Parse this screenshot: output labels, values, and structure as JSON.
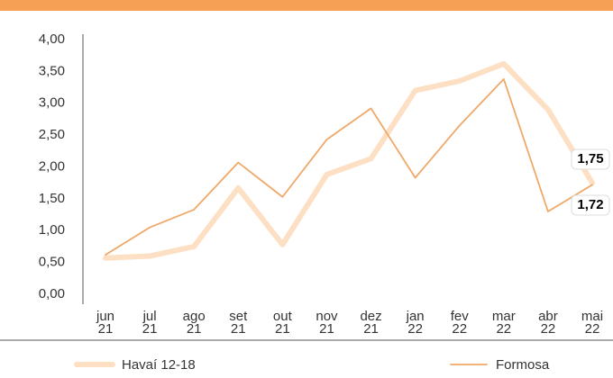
{
  "chart_data": {
    "type": "line",
    "categories": [
      "jun 21",
      "jul 21",
      "ago 21",
      "set 21",
      "out 21",
      "nov 21",
      "dez 21",
      "jan 22",
      "fev 22",
      "mar 22",
      "abr 22",
      "mai 22"
    ],
    "series": [
      {
        "name": "Havaí 12-18",
        "color": "#fde0c4",
        "values": [
          0.57,
          0.6,
          0.75,
          1.67,
          0.78,
          1.88,
          2.13,
          3.2,
          3.35,
          3.62,
          2.9,
          1.75
        ],
        "value_labels": [
          null,
          null,
          null,
          null,
          null,
          null,
          null,
          null,
          null,
          null,
          null,
          "1,75"
        ]
      },
      {
        "name": "Formosa",
        "color": "#f0a868",
        "values": [
          0.62,
          1.05,
          1.33,
          2.07,
          1.53,
          2.43,
          2.92,
          1.83,
          2.65,
          3.38,
          1.3,
          1.72
        ],
        "value_labels": [
          null,
          null,
          null,
          null,
          null,
          null,
          null,
          null,
          null,
          null,
          null,
          "1,72"
        ]
      }
    ],
    "ylim": [
      0,
      4
    ],
    "yticks": [
      {
        "value": 0,
        "label": "0,00"
      },
      {
        "value": 0.5,
        "label": "0,50"
      },
      {
        "value": 1,
        "label": "1,00"
      },
      {
        "value": 1.5,
        "label": "1,50"
      },
      {
        "value": 2,
        "label": "2,00"
      },
      {
        "value": 2.5,
        "label": "2,50"
      },
      {
        "value": 3,
        "label": "3,00"
      },
      {
        "value": 3.5,
        "label": "3,50"
      },
      {
        "value": 4,
        "label": "4,00"
      }
    ]
  }
}
